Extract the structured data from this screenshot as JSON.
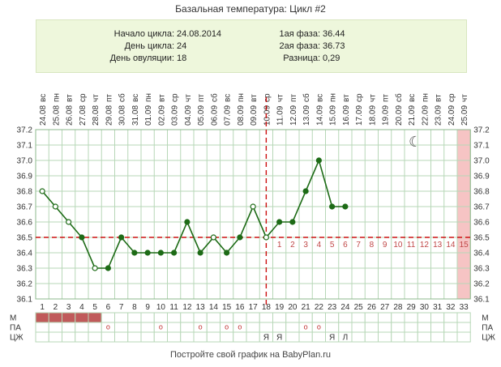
{
  "header": {
    "title": "Базальная температура: Цикл #2"
  },
  "info": {
    "cycle_start_label": "Начало цикла:",
    "cycle_start": "24.08.2014",
    "cycle_day_label": "День цикла:",
    "cycle_day": "24",
    "ovulation_day_label": "День овуляции:",
    "ovulation_day": "18",
    "phase1_label": "1ая фаза:",
    "phase1": "36.44",
    "phase2_label": "2ая фаза:",
    "phase2": "36.73",
    "diff_label": "Разница:",
    "diff": "0,29"
  },
  "chart_data": {
    "type": "line",
    "days": [
      "1",
      "2",
      "3",
      "4",
      "5",
      "6",
      "7",
      "8",
      "9",
      "10",
      "11",
      "12",
      "13",
      "14",
      "15",
      "16",
      "17",
      "18",
      "19",
      "20",
      "21",
      "22",
      "23",
      "24",
      "25",
      "26",
      "27",
      "28",
      "29",
      "30",
      "31",
      "32",
      "33"
    ],
    "weekdays": [
      "вс",
      "пн",
      "вт",
      "ср",
      "чт",
      "пт",
      "сб",
      "вс",
      "пн",
      "вт",
      "ср",
      "чт",
      "пт",
      "сб",
      "вс",
      "пн",
      "вт",
      "ср",
      "чт",
      "пт",
      "сб",
      "вс",
      "пн",
      "вт",
      "ср",
      "чт",
      "пт",
      "сб",
      "вс",
      "пн",
      "вт",
      "ср",
      "чт"
    ],
    "dates": [
      "24.08",
      "25.08",
      "26.08",
      "27.08",
      "28.08",
      "29.08",
      "30.08",
      "31.08",
      "01.09",
      "02.09",
      "03.09",
      "04.09",
      "05.09",
      "06.09",
      "07.09",
      "08.09",
      "09.09",
      "10.09",
      "11.09",
      "12.09",
      "13.09",
      "14.09",
      "15.09",
      "16.09",
      "17.09",
      "18.09",
      "19.09",
      "20.09",
      "21.09",
      "22.09",
      "23.09",
      "24.09",
      "25.09"
    ],
    "temperatures": [
      36.8,
      36.7,
      36.6,
      36.5,
      36.3,
      36.3,
      36.5,
      36.4,
      36.4,
      36.4,
      36.4,
      36.6,
      36.4,
      36.5,
      36.4,
      36.5,
      36.7,
      36.5,
      36.6,
      36.6,
      36.8,
      37.0,
      36.7,
      36.7
    ],
    "open_markers_days": [
      1,
      2,
      3,
      5,
      14,
      17,
      18
    ],
    "ylim": [
      36.1,
      37.2
    ],
    "yticks": [
      "37.2",
      "37.1",
      "37.0",
      "36.9",
      "36.8",
      "36.7",
      "36.6",
      "36.5",
      "36.4",
      "36.3",
      "36.2",
      "36.1"
    ],
    "coverline": 36.5,
    "ovulation_day": 18,
    "post_ovulation_labels": [
      "1",
      "2",
      "3",
      "4",
      "5",
      "6",
      "7",
      "8",
      "9",
      "10",
      "11",
      "12",
      "13",
      "14",
      "15"
    ],
    "highlight_day": 33,
    "moon_symbol": "☾",
    "colors": {
      "line": "#1d6b16",
      "coverline": "#cc1111",
      "ovulation": "#cc1111",
      "highlight": "#f6c4c4",
      "menses": "#c05a5a",
      "grid": "#b7d7b7"
    }
  },
  "bottom_rows": {
    "labels": [
      "М",
      "ПА",
      "ЦЖ"
    ],
    "menses_days": [
      1,
      2,
      3,
      4,
      5
    ],
    "pa_symbol": "о",
    "pa_days": [
      6,
      10,
      13,
      15,
      16,
      21,
      22
    ],
    "cervical": [
      {
        "day": 18,
        "value": "Я"
      },
      {
        "day": 19,
        "value": "Я"
      },
      {
        "day": 23,
        "value": "Я"
      },
      {
        "day": 24,
        "value": "Л"
      }
    ]
  },
  "footer": {
    "text": "Постройте свой график на BabyPlan.ru"
  }
}
